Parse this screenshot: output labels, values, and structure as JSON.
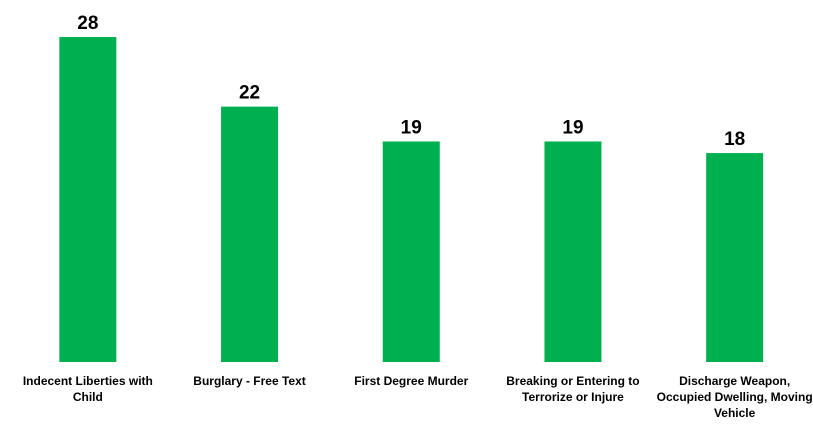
{
  "chart_data": {
    "type": "bar",
    "categories": [
      "Indecent Liberties with Child",
      "Burglary - Free Text",
      "First Degree Murder",
      "Breaking or Entering to Terrorize or Injure",
      "Discharge Weapon, Occupied Dwelling, Moving Vehicle"
    ],
    "values": [
      28,
      22,
      19,
      19,
      18
    ],
    "color": "#00b050"
  }
}
